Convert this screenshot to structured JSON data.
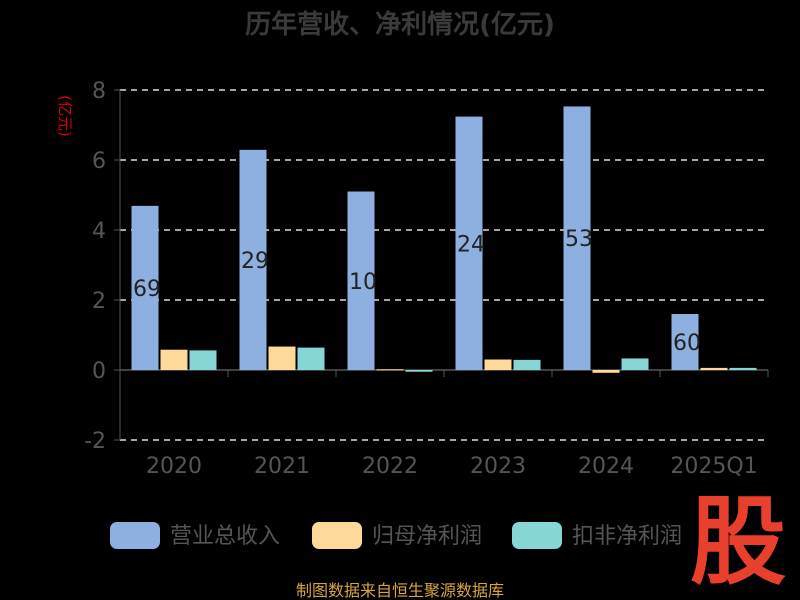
{
  "chart_data": {
    "type": "bar",
    "title": "历年营收、净利情况(亿元)",
    "ylabel": "(亿元)",
    "xlabel": "",
    "categories": [
      "2020",
      "2021",
      "2022",
      "2023",
      "2024",
      "2025Q1"
    ],
    "ylim": [
      -2,
      8
    ],
    "yticks": [
      -2,
      0,
      2,
      4,
      6,
      8
    ],
    "grid": true,
    "legend_position": "bottom",
    "series": [
      {
        "name": "营业总收入",
        "color": "#8eb0e0",
        "values": [
          4.69,
          6.29,
          5.1,
          7.24,
          7.53,
          1.6
        ],
        "labels": [
          "69",
          "29",
          "10",
          "24",
          "53",
          "60"
        ]
      },
      {
        "name": "归母净利润",
        "color": "#ffd99a",
        "values": [
          0.58,
          0.67,
          0.02,
          0.3,
          -0.08,
          0.06
        ]
      },
      {
        "name": "扣非净利润",
        "color": "#86d6d6",
        "values": [
          0.56,
          0.64,
          -0.05,
          0.29,
          0.33,
          0.06
        ]
      }
    ]
  },
  "source_text": "制图数据来自恒生聚源数据库",
  "stamp_text": "股"
}
